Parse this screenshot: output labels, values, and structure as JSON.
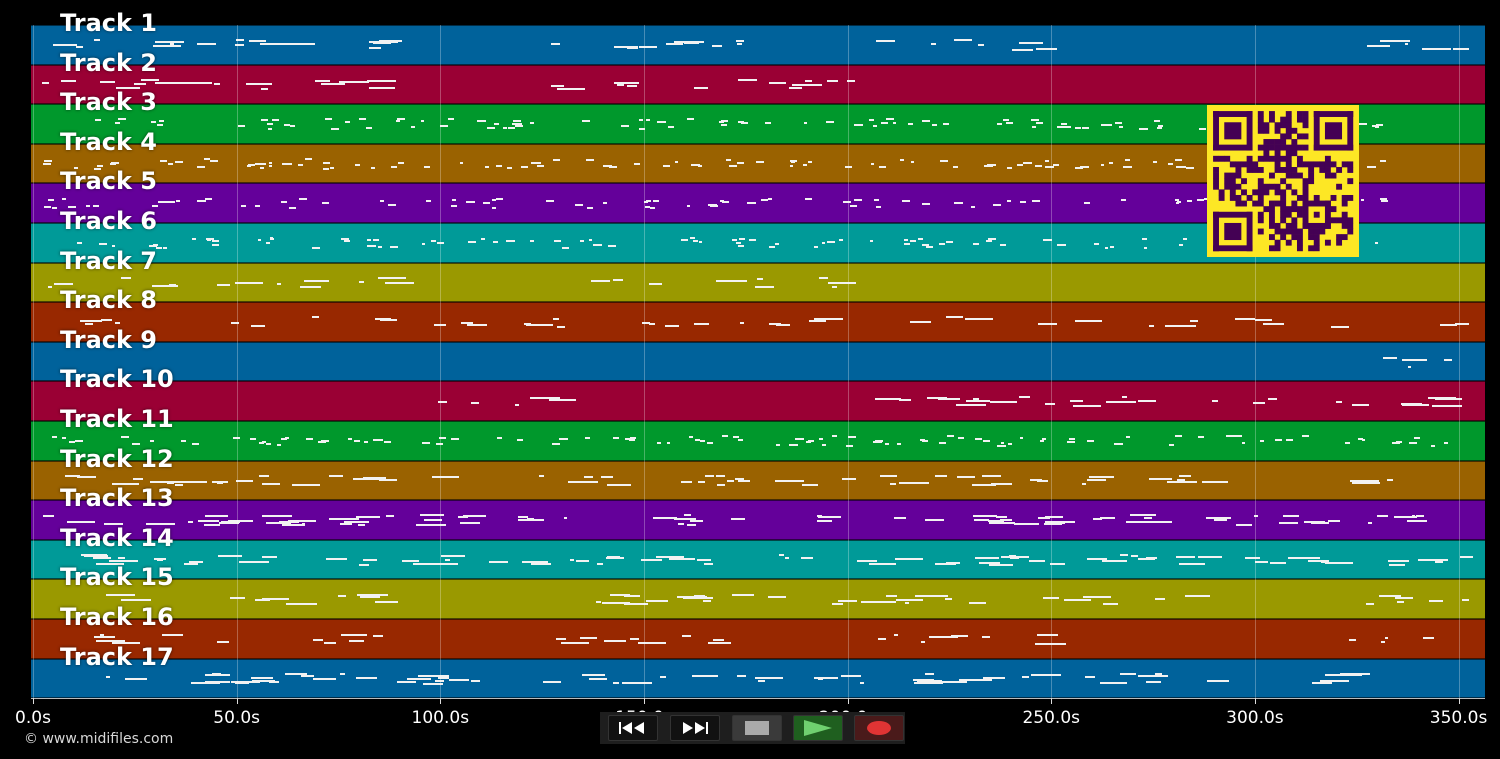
{
  "timeline": {
    "tracks": [
      {
        "label": "Track 1",
        "color": "#00629b"
      },
      {
        "label": "Track 2",
        "color": "#9a0034"
      },
      {
        "label": "Track 3",
        "color": "#00982c"
      },
      {
        "label": "Track 4",
        "color": "#9a6200"
      },
      {
        "label": "Track 5",
        "color": "#64009a"
      },
      {
        "label": "Track 6",
        "color": "#009a98"
      },
      {
        "label": "Track 7",
        "color": "#9a9900"
      },
      {
        "label": "Track 8",
        "color": "#982800"
      },
      {
        "label": "Track 9",
        "color": "#00629b"
      },
      {
        "label": "Track 10",
        "color": "#9a0034"
      },
      {
        "label": "Track 11",
        "color": "#00982c"
      },
      {
        "label": "Track 12",
        "color": "#9a6200"
      },
      {
        "label": "Track 13",
        "color": "#64009a"
      },
      {
        "label": "Track 14",
        "color": "#009a98"
      },
      {
        "label": "Track 15",
        "color": "#9a9900"
      },
      {
        "label": "Track 16",
        "color": "#982800"
      },
      {
        "label": "Track 17",
        "color": "#00629b"
      }
    ],
    "axis": {
      "ticks": [
        {
          "value": 0,
          "label": "0.0s"
        },
        {
          "value": 50,
          "label": "50.0s"
        },
        {
          "value": 100,
          "label": "100.0s"
        },
        {
          "value": 150,
          "label": "150.0s"
        },
        {
          "value": 200,
          "label": "200.0s"
        },
        {
          "value": 250,
          "label": "250.0s"
        },
        {
          "value": 300,
          "label": "300.0s"
        },
        {
          "value": 350,
          "label": "350.0s"
        }
      ],
      "max_seconds": 356
    }
  },
  "copyright": "© www.midifiles.com",
  "qr_code": {
    "fg": "#440154",
    "bg": "#fde725"
  },
  "transport": {
    "rewind": {
      "icon": "rewind-icon"
    },
    "fast_forward": {
      "icon": "fast-forward-icon"
    },
    "stop": {
      "icon": "stop-icon"
    },
    "play": {
      "icon": "play-icon"
    },
    "record": {
      "icon": "record-icon"
    }
  }
}
